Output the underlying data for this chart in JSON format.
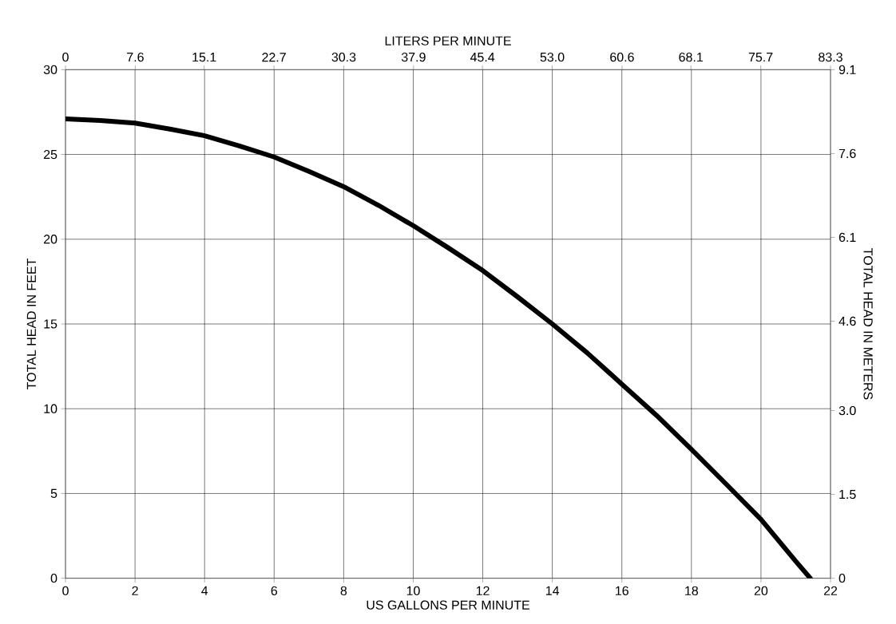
{
  "chart_data": {
    "type": "line",
    "xlabel": "US GALLONS PER MINUTE",
    "ylabel": "TOTAL HEAD IN FEET",
    "x2label": "LITERS PER MINUTE",
    "y2label": "TOTAL HEAD IN METERS",
    "x": [
      0,
      1,
      2,
      3,
      4,
      5,
      6,
      7,
      8,
      9,
      10,
      11,
      12,
      13,
      14,
      15,
      16,
      17,
      18,
      19,
      20,
      21,
      21.42
    ],
    "series": [
      {
        "color": "#000000",
        "values": [
          27.1,
          27.0,
          26.85,
          26.5,
          26.1,
          25.5,
          24.85,
          24.0,
          23.1,
          22.0,
          20.8,
          19.5,
          18.15,
          16.6,
          15.0,
          13.3,
          11.45,
          9.6,
          7.6,
          5.55,
          3.47,
          1.0,
          0
        ]
      }
    ],
    "xlim": [
      0,
      22
    ],
    "xticks": [
      0,
      2,
      4,
      6,
      8,
      10,
      12,
      14,
      16,
      18,
      20,
      22
    ],
    "ylim": [
      0,
      30
    ],
    "yticks": [
      0,
      5,
      10,
      15,
      20,
      25,
      30
    ],
    "x2lim": [
      0,
      83.3
    ],
    "x2ticks": [
      0,
      7.6,
      15.1,
      22.7,
      30.3,
      37.9,
      45.4,
      {
        "value": 53,
        "label": "53.0"
      },
      60.6,
      68.1,
      75.7,
      83.3
    ],
    "y2lim": [
      0,
      9.1
    ],
    "y2ticks": [
      0,
      1.5,
      {
        "value": 3,
        "label": "3.0"
      },
      4.6,
      6.1,
      7.6,
      9.1
    ],
    "grid": true
  }
}
